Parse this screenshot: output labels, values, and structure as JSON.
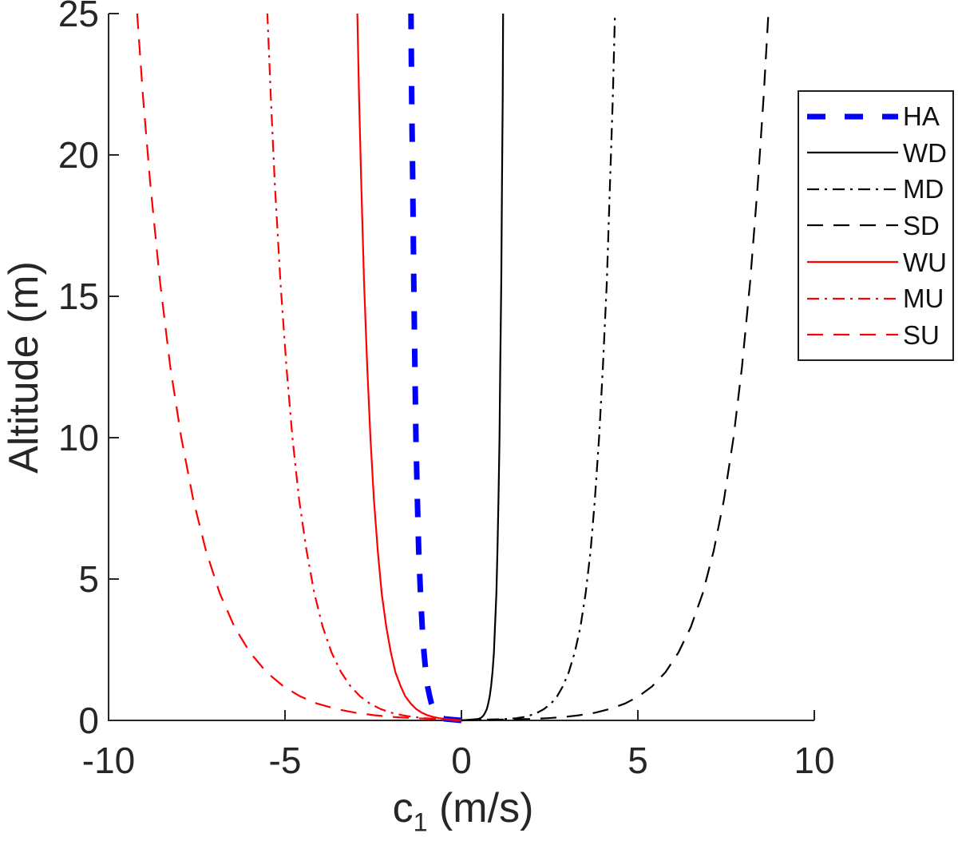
{
  "figure": {
    "background": "#ffffff",
    "axis_color": "#262626",
    "colors": {
      "blue": "#0000ff",
      "black": "#000000",
      "red": "#ff0000"
    }
  },
  "axes": {
    "xlabel": {
      "base": "c",
      "sub": "1",
      "rest": " (m/s)"
    },
    "ylabel": "Altitude (m)",
    "x_ticks": {
      "values": [
        -10,
        -5,
        0,
        5,
        10
      ],
      "labels": [
        "-10",
        "-5",
        "0",
        "5",
        "10"
      ]
    },
    "y_ticks": {
      "values": [
        0,
        5,
        10,
        15,
        20,
        25
      ],
      "labels": [
        "0",
        "5",
        "10",
        "15",
        "20",
        "25"
      ]
    }
  },
  "legend": {
    "items": [
      "HA",
      "WD",
      "MD",
      "SD",
      "WU",
      "MU",
      "SU"
    ]
  },
  "chart_data": {
    "type": "line",
    "title": "",
    "xlabel": "c_1 (m/s)",
    "ylabel": "Altitude (m)",
    "xlim": [
      -10,
      10
    ],
    "ylim": [
      0,
      25
    ],
    "grid": false,
    "legend_position": "upper right",
    "altitudes_m": [
      0,
      0.05,
      0.08,
      0.12,
      0.18,
      0.27,
      0.4,
      0.6,
      0.85,
      1.2,
      1.7,
      2.4,
      3.3,
      4.5,
      6,
      7.8,
      10,
      12.5,
      15.5,
      19,
      22,
      25
    ],
    "series": [
      {
        "name": "HA",
        "color": "#0000ff",
        "line_style": "thick-dashed",
        "c1_values": [
          0,
          -0.46,
          -0.54,
          -0.6,
          -0.66,
          -0.73,
          -0.79,
          -0.85,
          -0.9,
          -0.96,
          -1.01,
          -1.06,
          -1.11,
          -1.16,
          -1.21,
          -1.25,
          -1.29,
          -1.32,
          -1.35,
          -1.38,
          -1.41,
          -1.43
        ]
      },
      {
        "name": "WD",
        "color": "#000000",
        "line_style": "solid",
        "c1_values": [
          0,
          0.48,
          0.54,
          0.58,
          0.63,
          0.67,
          0.72,
          0.76,
          0.8,
          0.84,
          0.88,
          0.92,
          0.95,
          0.99,
          1.02,
          1.05,
          1.08,
          1.1,
          1.13,
          1.15,
          1.17,
          1.18
        ]
      },
      {
        "name": "MD",
        "color": "#000000",
        "line_style": "dashdot",
        "c1_values": [
          0,
          1.33,
          1.56,
          1.76,
          1.95,
          2.15,
          2.34,
          2.54,
          2.71,
          2.87,
          3.04,
          3.21,
          3.37,
          3.52,
          3.66,
          3.78,
          3.9,
          4.01,
          4.12,
          4.21,
          4.29,
          4.35
        ]
      },
      {
        "name": "SD",
        "color": "#000000",
        "line_style": "dashed",
        "c1_values": [
          0,
          1.94,
          2.45,
          2.89,
          3.33,
          3.78,
          4.2,
          4.64,
          5.02,
          5.4,
          5.78,
          6.15,
          6.5,
          6.84,
          7.15,
          7.44,
          7.71,
          7.95,
          8.18,
          8.4,
          8.56,
          8.7
        ]
      },
      {
        "name": "WU",
        "color": "#ff0000",
        "line_style": "solid",
        "c1_values": [
          0,
          -0.44,
          -0.63,
          -0.79,
          -0.96,
          -1.12,
          -1.28,
          -1.44,
          -1.59,
          -1.72,
          -1.87,
          -2.0,
          -2.13,
          -2.26,
          -2.37,
          -2.48,
          -2.58,
          -2.67,
          -2.76,
          -2.84,
          -2.9,
          -2.95
        ]
      },
      {
        "name": "MU",
        "color": "#ff0000",
        "line_style": "dashdot",
        "c1_values": [
          0,
          -0.67,
          -1.04,
          -1.35,
          -1.67,
          -1.98,
          -2.29,
          -2.6,
          -2.87,
          -3.14,
          -3.41,
          -3.68,
          -3.93,
          -4.17,
          -4.39,
          -4.6,
          -4.79,
          -4.96,
          -5.13,
          -5.29,
          -5.4,
          -5.5
        ]
      },
      {
        "name": "SU",
        "color": "#ff0000",
        "line_style": "dashed",
        "c1_values": [
          0,
          -0.7,
          -1.34,
          -1.9,
          -2.45,
          -3.0,
          -3.54,
          -4.1,
          -4.57,
          -5.04,
          -5.52,
          -5.99,
          -6.43,
          -6.85,
          -7.24,
          -7.6,
          -7.94,
          -8.25,
          -8.54,
          -8.82,
          -9.02,
          -9.19
        ]
      }
    ]
  }
}
